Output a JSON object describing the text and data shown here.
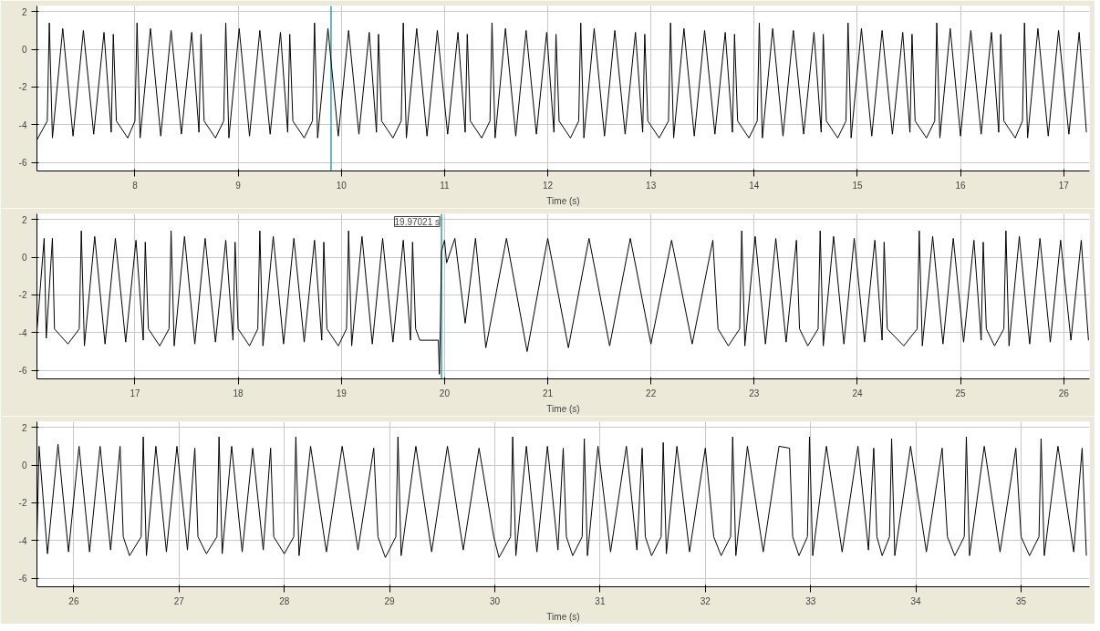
{
  "chart_data": [
    {
      "type": "line",
      "xlabel": "Time (s)",
      "grid": true,
      "marker": "none",
      "line_style": "solid",
      "xlim": [
        7.05,
        17.25
      ],
      "xticks": [
        8,
        9,
        10,
        11,
        12,
        13,
        14,
        15,
        16,
        17
      ],
      "ylim": [
        -6.45,
        2.3
      ],
      "yticks": [
        -6,
        -4,
        -2,
        0,
        2
      ],
      "ref_lines": [
        {
          "axis": "x",
          "value": 9.9,
          "label": null,
          "color": "#3a9ea5"
        }
      ],
      "series": [
        {
          "color": "#000000",
          "x": [
            7.05,
            7.15,
            7.17,
            7.2,
            7.3,
            7.4,
            7.5,
            7.6,
            7.7,
            7.77,
            7.79,
            7.82,
            7.93,
            8.0,
            8.02,
            8.05,
            8.15,
            8.25,
            8.35,
            8.45,
            8.55,
            8.62,
            8.64,
            8.67,
            8.78,
            8.86,
            8.88,
            8.91,
            9.01,
            9.11,
            9.21,
            9.31,
            9.41,
            9.48,
            9.5,
            9.53,
            9.64,
            9.72,
            9.74,
            9.77,
            9.87,
            9.97,
            10.07,
            10.17,
            10.27,
            10.34,
            10.36,
            10.39,
            10.5,
            10.58,
            10.6,
            10.63,
            10.73,
            10.83,
            10.93,
            11.03,
            11.13,
            11.2,
            11.22,
            11.25,
            11.36,
            11.44,
            11.46,
            11.49,
            11.59,
            11.69,
            11.79,
            11.89,
            11.99,
            12.06,
            12.08,
            12.11,
            12.22,
            12.3,
            12.32,
            12.35,
            12.45,
            12.55,
            12.65,
            12.75,
            12.85,
            12.92,
            12.94,
            12.97,
            13.08,
            13.17,
            13.19,
            13.22,
            13.32,
            13.42,
            13.52,
            13.62,
            13.72,
            13.79,
            13.81,
            13.84,
            13.95,
            14.03,
            14.05,
            14.08,
            14.18,
            14.28,
            14.38,
            14.48,
            14.58,
            14.65,
            14.67,
            14.7,
            14.81,
            14.89,
            14.91,
            14.94,
            15.04,
            15.14,
            15.24,
            15.34,
            15.44,
            15.51,
            15.53,
            15.56,
            15.67,
            15.75,
            15.77,
            15.8,
            15.9,
            16.0,
            16.1,
            16.2,
            16.3,
            16.37,
            16.39,
            16.42,
            16.53,
            16.6,
            16.62,
            16.65,
            16.75,
            16.85,
            16.95,
            17.05,
            17.15,
            17.22
          ],
          "values": [
            -4.8,
            -3.8,
            1.4,
            -4.7,
            1.1,
            -4.6,
            1.0,
            -4.5,
            0.9,
            -4.4,
            0.8,
            -3.8,
            -4.7,
            -3.8,
            1.4,
            -4.7,
            1.1,
            -4.6,
            1.0,
            -4.5,
            0.9,
            -4.4,
            0.8,
            -3.8,
            -4.7,
            -3.8,
            1.4,
            -4.7,
            1.1,
            -4.6,
            1.0,
            -4.5,
            0.9,
            -4.4,
            0.8,
            -3.8,
            -4.7,
            -3.8,
            1.4,
            -4.7,
            1.1,
            -4.6,
            1.0,
            -4.5,
            0.9,
            -4.4,
            0.8,
            -3.8,
            -4.7,
            -3.8,
            1.4,
            -4.7,
            1.1,
            -4.6,
            1.0,
            -4.5,
            0.9,
            -4.4,
            0.8,
            -3.8,
            -4.7,
            -3.8,
            1.4,
            -4.7,
            1.1,
            -4.6,
            1.0,
            -4.5,
            0.9,
            -4.4,
            0.8,
            -3.8,
            -4.7,
            -3.8,
            1.4,
            -4.7,
            1.1,
            -4.6,
            1.0,
            -4.5,
            0.9,
            -4.4,
            0.8,
            -3.8,
            -4.7,
            -3.8,
            1.4,
            -4.7,
            1.1,
            -4.6,
            1.0,
            -4.5,
            0.9,
            -4.4,
            0.8,
            -3.8,
            -4.7,
            -3.8,
            1.4,
            -4.7,
            1.1,
            -4.6,
            1.0,
            -4.5,
            0.9,
            -4.4,
            0.8,
            -3.8,
            -4.7,
            -3.8,
            1.4,
            -4.7,
            1.1,
            -4.6,
            1.0,
            -4.5,
            0.9,
            -4.4,
            0.8,
            -3.8,
            -4.7,
            -3.8,
            1.4,
            -4.7,
            1.1,
            -4.6,
            1.0,
            -4.5,
            0.9,
            -4.4,
            0.8,
            -3.8,
            -4.7,
            -3.8,
            1.4,
            -4.7,
            1.1,
            -4.6,
            1.0,
            -4.5,
            0.9,
            -4.4
          ]
        }
      ]
    },
    {
      "type": "line",
      "xlabel": "Time (s)",
      "grid": true,
      "marker": "none",
      "line_style": "solid",
      "xlim": [
        16.05,
        26.25
      ],
      "xticks": [
        17,
        18,
        19,
        20,
        21,
        22,
        23,
        24,
        25,
        26
      ],
      "ylim": [
        -6.45,
        2.3
      ],
      "yticks": [
        -6,
        -4,
        -2,
        0,
        2
      ],
      "ref_lines": [
        {
          "axis": "x",
          "value": 19.97021,
          "label": "19.97021 s",
          "color": "#3a9ea5"
        }
      ],
      "series": [
        {
          "color": "#000000",
          "x": [
            16.05,
            16.12,
            16.14,
            16.2,
            16.22,
            16.35,
            16.46,
            16.48,
            16.51,
            16.61,
            16.71,
            16.81,
            16.91,
            17.01,
            17.08,
            17.1,
            17.13,
            17.24,
            17.33,
            17.35,
            17.38,
            17.48,
            17.58,
            17.68,
            17.78,
            17.88,
            17.95,
            17.97,
            18.0,
            18.11,
            18.19,
            18.21,
            18.24,
            18.34,
            18.44,
            18.54,
            18.64,
            18.74,
            18.81,
            18.83,
            18.86,
            18.97,
            19.05,
            19.07,
            19.1,
            19.2,
            19.3,
            19.4,
            19.5,
            19.6,
            19.67,
            19.69,
            19.72,
            19.76,
            19.94,
            19.95,
            19.96,
            19.97,
            20.0,
            20.02,
            20.1,
            20.2,
            20.3,
            20.4,
            20.6,
            20.8,
            21.0,
            21.2,
            21.4,
            21.6,
            21.8,
            22.0,
            22.2,
            22.4,
            22.6,
            22.65,
            22.75,
            22.86,
            22.88,
            22.91,
            23.01,
            23.11,
            23.21,
            23.31,
            23.41,
            23.44,
            23.52,
            23.62,
            23.64,
            23.67,
            23.77,
            23.87,
            23.97,
            24.07,
            24.17,
            24.24,
            24.26,
            24.29,
            24.45,
            24.58,
            24.6,
            24.63,
            24.73,
            24.83,
            24.93,
            25.03,
            25.13,
            25.2,
            25.22,
            25.25,
            25.33,
            25.42,
            25.44,
            25.47,
            25.57,
            25.67,
            25.77,
            25.87,
            25.97,
            26.07,
            26.17,
            26.24
          ],
          "values": [
            -3.9,
            1.0,
            -4.3,
            1.0,
            -3.8,
            -4.6,
            -3.8,
            1.4,
            -4.7,
            1.1,
            -4.6,
            1.0,
            -4.5,
            0.9,
            -4.4,
            0.8,
            -3.8,
            -4.7,
            -3.8,
            1.4,
            -4.7,
            1.1,
            -4.6,
            1.0,
            -4.5,
            0.9,
            -4.4,
            0.8,
            -3.8,
            -4.7,
            -3.8,
            1.4,
            -4.7,
            1.1,
            -4.6,
            1.0,
            -4.5,
            0.9,
            -4.4,
            0.8,
            -3.8,
            -4.7,
            -3.8,
            1.4,
            -4.7,
            1.1,
            -4.6,
            1.0,
            -4.5,
            0.9,
            -4.4,
            0.8,
            -3.8,
            -4.4,
            -4.4,
            -6.2,
            -3.5,
            0.3,
            0.9,
            -0.3,
            1.0,
            -3.5,
            1.0,
            -4.8,
            1.0,
            -5.0,
            1.0,
            -4.8,
            1.0,
            -4.7,
            1.0,
            -4.6,
            0.9,
            -4.6,
            0.9,
            -3.8,
            -4.7,
            -3.8,
            1.4,
            -4.7,
            1.1,
            -4.6,
            1.0,
            -4.5,
            0.9,
            -3.8,
            -4.7,
            -3.8,
            1.4,
            -4.7,
            1.1,
            -4.6,
            1.0,
            -4.5,
            0.9,
            -4.4,
            0.8,
            -3.8,
            -4.7,
            -3.8,
            1.4,
            -4.7,
            1.1,
            -4.6,
            1.0,
            -4.5,
            0.9,
            -4.4,
            0.8,
            -3.8,
            -4.7,
            -3.8,
            1.4,
            -4.7,
            1.1,
            -4.6,
            1.0,
            -4.5,
            0.9,
            -4.4,
            0.9,
            -4.4
          ]
        }
      ]
    },
    {
      "type": "line",
      "xlabel": "Time (s)",
      "grid": true,
      "marker": "none",
      "line_style": "solid",
      "xlim": [
        25.65,
        35.65
      ],
      "xticks": [
        26,
        27,
        28,
        29,
        30,
        31,
        32,
        33,
        34,
        35
      ],
      "ylim": [
        -6.45,
        2.3
      ],
      "yticks": [
        -6,
        -4,
        -2,
        0,
        2
      ],
      "series": [
        {
          "color": "#000000",
          "x": [
            25.65,
            25.67,
            25.75,
            25.85,
            25.95,
            26.05,
            26.15,
            26.25,
            26.35,
            26.44,
            26.47,
            26.53,
            26.64,
            26.66,
            26.69,
            26.78,
            26.88,
            26.98,
            27.08,
            27.15,
            27.18,
            27.26,
            27.36,
            27.38,
            27.41,
            27.5,
            27.6,
            27.7,
            27.8,
            27.87,
            27.9,
            28.0,
            28.09,
            28.11,
            28.14,
            28.25,
            28.4,
            28.55,
            28.7,
            28.85,
            28.89,
            28.96,
            29.06,
            29.08,
            29.11,
            29.25,
            29.4,
            29.55,
            29.7,
            29.85,
            29.99,
            30.04,
            30.15,
            30.17,
            30.2,
            30.3,
            30.4,
            30.5,
            30.6,
            30.65,
            30.68,
            30.74,
            30.83,
            30.85,
            30.88,
            30.98,
            31.1,
            31.25,
            31.35,
            31.4,
            31.43,
            31.49,
            31.58,
            31.6,
            31.63,
            31.73,
            31.85,
            32.0,
            32.08,
            32.15,
            32.24,
            32.26,
            32.29,
            32.4,
            32.55,
            32.7,
            32.8,
            32.83,
            32.89,
            32.97,
            32.99,
            33.02,
            33.15,
            33.3,
            33.45,
            33.55,
            33.6,
            33.63,
            33.68,
            33.75,
            33.77,
            33.8,
            33.95,
            34.1,
            34.25,
            34.3,
            34.37,
            34.46,
            34.48,
            34.51,
            34.65,
            34.8,
            34.95,
            35.0,
            35.08,
            35.17,
            35.19,
            35.22,
            35.35,
            35.5,
            35.58,
            35.62
          ],
          "values": [
            -4.0,
            1.0,
            -4.7,
            1.1,
            -4.6,
            1.0,
            -4.6,
            1.0,
            -4.5,
            1.0,
            -3.8,
            -4.8,
            -3.8,
            1.5,
            -4.8,
            1.0,
            -4.6,
            1.0,
            -4.5,
            0.9,
            -3.8,
            -4.7,
            -3.8,
            1.5,
            -4.7,
            1.0,
            -4.6,
            0.9,
            -4.5,
            0.9,
            -3.8,
            -4.7,
            -3.8,
            1.5,
            -4.8,
            1.0,
            -4.6,
            1.0,
            -4.5,
            0.9,
            -3.8,
            -4.9,
            -3.8,
            1.5,
            -4.8,
            1.0,
            -4.6,
            1.0,
            -4.5,
            0.9,
            -3.8,
            -4.9,
            -3.8,
            1.5,
            -4.8,
            1.0,
            -4.6,
            1.0,
            -4.5,
            0.9,
            -3.8,
            -4.8,
            -3.8,
            1.4,
            -4.8,
            1.0,
            -4.6,
            1.0,
            -4.5,
            0.9,
            -3.8,
            -4.8,
            -3.8,
            1.2,
            -4.7,
            1.0,
            -4.6,
            0.9,
            -3.8,
            -4.8,
            -3.8,
            1.5,
            -4.8,
            1.0,
            -4.6,
            1.0,
            0.9,
            -3.8,
            -4.8,
            -3.8,
            1.5,
            -4.8,
            1.0,
            -4.6,
            1.0,
            -4.5,
            0.9,
            -3.8,
            -4.8,
            -3.8,
            1.4,
            -4.8,
            1.0,
            -4.6,
            0.9,
            -3.8,
            -4.8,
            -3.8,
            1.5,
            -4.8,
            1.0,
            -4.6,
            0.9,
            -3.8,
            -4.8,
            -3.8,
            1.4,
            -4.8,
            1.0,
            -4.6,
            0.9,
            -4.8
          ]
        }
      ]
    }
  ]
}
